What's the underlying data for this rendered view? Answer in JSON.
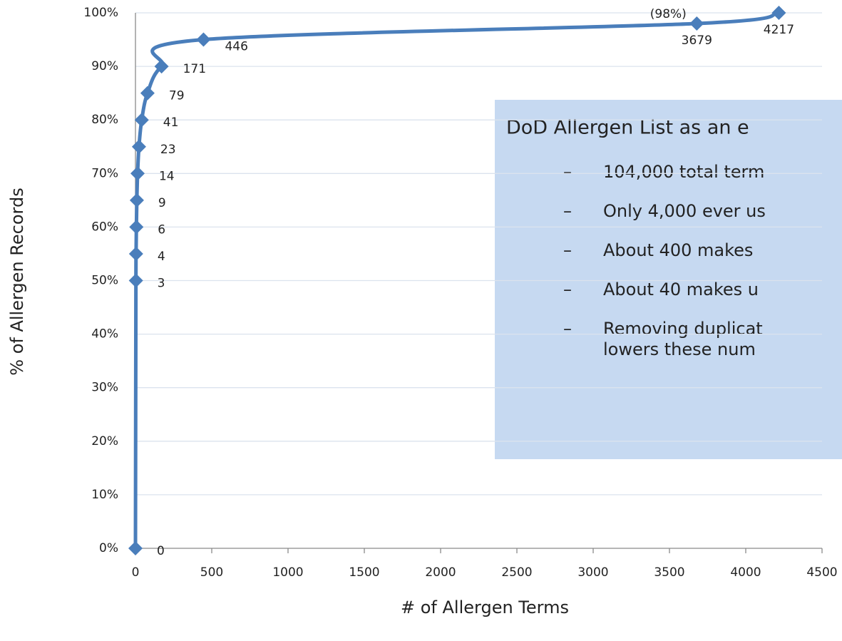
{
  "chart_data": {
    "type": "line",
    "x_label": "# of Allergen Terms",
    "y_label": "% of Allergen Records",
    "x": [
      0,
      3,
      4,
      6,
      9,
      14,
      23,
      41,
      79,
      171,
      446,
      3679,
      4217
    ],
    "series": [
      {
        "name": "% of Allergen Records",
        "color": "#4a7ebb",
        "values": [
          0,
          50,
          55,
          60,
          65,
          70,
          75,
          80,
          85,
          90,
          95,
          98,
          100
        ]
      }
    ],
    "annotations": [
      "(98%)"
    ],
    "xlim": [
      0,
      4500
    ],
    "xticks": [
      0,
      500,
      1000,
      1500,
      2000,
      2500,
      3000,
      3500,
      4000,
      4500
    ],
    "ylim": [
      0,
      100
    ],
    "yticks": [
      {
        "value": 0,
        "label": "0%"
      },
      {
        "value": 10,
        "label": "10%"
      },
      {
        "value": 20,
        "label": "20%"
      },
      {
        "value": 30,
        "label": "30%"
      },
      {
        "value": 40,
        "label": "40%"
      },
      {
        "value": 50,
        "label": "50%"
      },
      {
        "value": 60,
        "label": "60%"
      },
      {
        "value": 70,
        "label": "70%"
      },
      {
        "value": 80,
        "label": "80%"
      },
      {
        "value": 90,
        "label": "90%"
      },
      {
        "value": 100,
        "label": "100%"
      }
    ],
    "grid": true,
    "text_box": {
      "title": "DoD Allergen List as an e",
      "items": [
        "104,000 total term",
        "Only 4,000 ever us",
        "About 400 makes",
        "About 40 makes u",
        "Removing duplicat"
      ],
      "continuation": "lowers these num"
    }
  }
}
